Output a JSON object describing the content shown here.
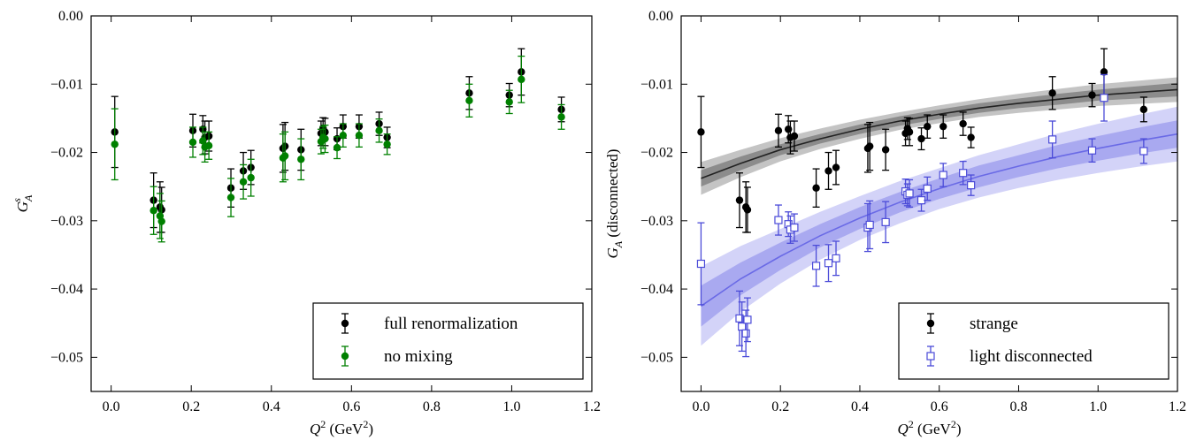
{
  "chart_data": [
    {
      "type": "scatter",
      "xlabel": "Q² (GeV²)",
      "ylabel": "G_A^s",
      "xlim": [
        -0.05,
        1.2
      ],
      "ylim": [
        -0.055,
        0.0
      ],
      "xticks": [
        "0.0",
        "0.2",
        "0.4",
        "0.6",
        "0.8",
        "1.0",
        "1.2"
      ],
      "yticks": [
        "0.00",
        "−0.01",
        "−0.02",
        "−0.03",
        "−0.04",
        "−0.05"
      ],
      "xtick_values": [
        0.0,
        0.2,
        0.4,
        0.6,
        0.8,
        1.0,
        1.2
      ],
      "ytick_values": [
        0.0,
        -0.01,
        -0.02,
        -0.03,
        -0.04,
        -0.05
      ],
      "legend_position": "bottom-right",
      "series": [
        {
          "name": "full renormalization",
          "color": "#000000",
          "marker": "circle-filled",
          "points": [
            {
              "x": 0.0,
              "y": -0.017,
              "err": 0.0052
            },
            {
              "x": 0.097,
              "y": -0.027,
              "err": 0.004
            },
            {
              "x": 0.113,
              "y": -0.028,
              "err": 0.0037
            },
            {
              "x": 0.117,
              "y": -0.0284,
              "err": 0.0033
            },
            {
              "x": 0.195,
              "y": -0.0168,
              "err": 0.0024
            },
            {
              "x": 0.22,
              "y": -0.0166,
              "err": 0.002
            },
            {
              "x": 0.225,
              "y": -0.0178,
              "err": 0.0024
            },
            {
              "x": 0.235,
              "y": -0.0176,
              "err": 0.0022
            },
            {
              "x": 0.29,
              "y": -0.0252,
              "err": 0.0028
            },
            {
              "x": 0.321,
              "y": -0.0227,
              "err": 0.0027
            },
            {
              "x": 0.34,
              "y": -0.0222,
              "err": 0.0025
            },
            {
              "x": 0.42,
              "y": -0.0194,
              "err": 0.0035
            },
            {
              "x": 0.425,
              "y": -0.0191,
              "err": 0.0035
            },
            {
              "x": 0.465,
              "y": -0.0196,
              "err": 0.003
            },
            {
              "x": 0.515,
              "y": -0.0172,
              "err": 0.0018
            },
            {
              "x": 0.52,
              "y": -0.0165,
              "err": 0.0016
            },
            {
              "x": 0.525,
              "y": -0.017,
              "err": 0.002
            },
            {
              "x": 0.555,
              "y": -0.018,
              "err": 0.0016
            },
            {
              "x": 0.57,
              "y": -0.0162,
              "err": 0.0017
            },
            {
              "x": 0.61,
              "y": -0.0162,
              "err": 0.0017
            },
            {
              "x": 0.66,
              "y": -0.0158,
              "err": 0.0017
            },
            {
              "x": 0.68,
              "y": -0.0178,
              "err": 0.0015
            },
            {
              "x": 0.885,
              "y": -0.0113,
              "err": 0.0024
            },
            {
              "x": 0.985,
              "y": -0.0116,
              "err": 0.0017
            },
            {
              "x": 1.015,
              "y": -0.0082,
              "err": 0.0034
            },
            {
              "x": 1.115,
              "y": -0.0137,
              "err": 0.0018
            }
          ]
        },
        {
          "name": "no mixing",
          "color": "#008000",
          "marker": "circle-filled",
          "points": [
            {
              "x": 0.0,
              "y": -0.0188,
              "err": 0.0052
            },
            {
              "x": 0.097,
              "y": -0.0285,
              "err": 0.0035
            },
            {
              "x": 0.113,
              "y": -0.0293,
              "err": 0.0033
            },
            {
              "x": 0.117,
              "y": -0.0301,
              "err": 0.003
            },
            {
              "x": 0.195,
              "y": -0.0185,
              "err": 0.0022
            },
            {
              "x": 0.22,
              "y": -0.0183,
              "err": 0.002
            },
            {
              "x": 0.225,
              "y": -0.0192,
              "err": 0.0022
            },
            {
              "x": 0.235,
              "y": -0.019,
              "err": 0.002
            },
            {
              "x": 0.29,
              "y": -0.0266,
              "err": 0.0028
            },
            {
              "x": 0.321,
              "y": -0.0243,
              "err": 0.0025
            },
            {
              "x": 0.34,
              "y": -0.0237,
              "err": 0.0027
            },
            {
              "x": 0.42,
              "y": -0.0208,
              "err": 0.0035
            },
            {
              "x": 0.425,
              "y": -0.0205,
              "err": 0.0035
            },
            {
              "x": 0.465,
              "y": -0.021,
              "err": 0.003
            },
            {
              "x": 0.515,
              "y": -0.0184,
              "err": 0.0018
            },
            {
              "x": 0.52,
              "y": -0.0178,
              "err": 0.0016
            },
            {
              "x": 0.525,
              "y": -0.018,
              "err": 0.002
            },
            {
              "x": 0.555,
              "y": -0.0193,
              "err": 0.0016
            },
            {
              "x": 0.57,
              "y": -0.0175,
              "err": 0.0017
            },
            {
              "x": 0.61,
              "y": -0.0175,
              "err": 0.0017
            },
            {
              "x": 0.66,
              "y": -0.0168,
              "err": 0.0017
            },
            {
              "x": 0.68,
              "y": -0.0188,
              "err": 0.0015
            },
            {
              "x": 0.885,
              "y": -0.0124,
              "err": 0.0024
            },
            {
              "x": 0.985,
              "y": -0.0126,
              "err": 0.0017
            },
            {
              "x": 1.015,
              "y": -0.0093,
              "err": 0.0034
            },
            {
              "x": 1.115,
              "y": -0.0148,
              "err": 0.0018
            }
          ]
        }
      ]
    },
    {
      "type": "scatter",
      "xlabel": "Q² (GeV²)",
      "ylabel": "G_A (disconnected)",
      "xlim": [
        -0.05,
        1.2
      ],
      "ylim": [
        -0.055,
        0.0
      ],
      "xticks": [
        "0.0",
        "0.2",
        "0.4",
        "0.6",
        "0.8",
        "1.0",
        "1.2"
      ],
      "yticks": [
        "0.00",
        "−0.01",
        "−0.02",
        "−0.03",
        "−0.04",
        "−0.05"
      ],
      "xtick_values": [
        0.0,
        0.2,
        0.4,
        0.6,
        0.8,
        1.0,
        1.2
      ],
      "ytick_values": [
        0.0,
        -0.01,
        -0.02,
        -0.03,
        -0.04,
        -0.05
      ],
      "legend_position": "bottom-right",
      "series": [
        {
          "name": "strange",
          "color": "#000000",
          "marker": "circle-filled",
          "points": [
            {
              "x": 0.0,
              "y": -0.017,
              "err": 0.0052
            },
            {
              "x": 0.097,
              "y": -0.027,
              "err": 0.004
            },
            {
              "x": 0.113,
              "y": -0.028,
              "err": 0.0037
            },
            {
              "x": 0.117,
              "y": -0.0284,
              "err": 0.0033
            },
            {
              "x": 0.195,
              "y": -0.0168,
              "err": 0.0024
            },
            {
              "x": 0.22,
              "y": -0.0166,
              "err": 0.002
            },
            {
              "x": 0.225,
              "y": -0.0178,
              "err": 0.0024
            },
            {
              "x": 0.235,
              "y": -0.0176,
              "err": 0.0022
            },
            {
              "x": 0.29,
              "y": -0.0252,
              "err": 0.0028
            },
            {
              "x": 0.321,
              "y": -0.0227,
              "err": 0.0027
            },
            {
              "x": 0.34,
              "y": -0.0222,
              "err": 0.0025
            },
            {
              "x": 0.42,
              "y": -0.0194,
              "err": 0.0035
            },
            {
              "x": 0.425,
              "y": -0.0191,
              "err": 0.0035
            },
            {
              "x": 0.465,
              "y": -0.0196,
              "err": 0.003
            },
            {
              "x": 0.515,
              "y": -0.0172,
              "err": 0.0018
            },
            {
              "x": 0.52,
              "y": -0.0165,
              "err": 0.0016
            },
            {
              "x": 0.525,
              "y": -0.017,
              "err": 0.002
            },
            {
              "x": 0.555,
              "y": -0.018,
              "err": 0.0016
            },
            {
              "x": 0.57,
              "y": -0.0162,
              "err": 0.0017
            },
            {
              "x": 0.61,
              "y": -0.0162,
              "err": 0.0017
            },
            {
              "x": 0.66,
              "y": -0.0158,
              "err": 0.0017
            },
            {
              "x": 0.68,
              "y": -0.0178,
              "err": 0.0015
            },
            {
              "x": 0.885,
              "y": -0.0113,
              "err": 0.0024
            },
            {
              "x": 0.985,
              "y": -0.0116,
              "err": 0.0017
            },
            {
              "x": 1.015,
              "y": -0.0082,
              "err": 0.0034
            },
            {
              "x": 1.115,
              "y": -0.0137,
              "err": 0.0018
            }
          ],
          "fit": {
            "color": "#222222",
            "inner_band_color": "#8c8c8c",
            "outer_band_color": "#c4c4c4",
            "points": [
              {
                "x": 0.0,
                "y": -0.0238,
                "inner": 0.0012,
                "outer": 0.0024
              },
              {
                "x": 0.1,
                "y": -0.0216,
                "inner": 0.001,
                "outer": 0.002
              },
              {
                "x": 0.2,
                "y": -0.0196,
                "inner": 0.0008,
                "outer": 0.0017
              },
              {
                "x": 0.3,
                "y": -0.018,
                "inner": 0.0007,
                "outer": 0.0015
              },
              {
                "x": 0.4,
                "y": -0.0166,
                "inner": 0.0007,
                "outer": 0.0014
              },
              {
                "x": 0.5,
                "y": -0.0154,
                "inner": 0.0007,
                "outer": 0.0013
              },
              {
                "x": 0.6,
                "y": -0.0144,
                "inner": 0.0007,
                "outer": 0.0013
              },
              {
                "x": 0.7,
                "y": -0.0135,
                "inner": 0.0007,
                "outer": 0.0013
              },
              {
                "x": 0.8,
                "y": -0.0128,
                "inner": 0.0007,
                "outer": 0.0014
              },
              {
                "x": 0.9,
                "y": -0.0122,
                "inner": 0.0008,
                "outer": 0.0015
              },
              {
                "x": 1.0,
                "y": -0.0116,
                "inner": 0.0008,
                "outer": 0.0016
              },
              {
                "x": 1.1,
                "y": -0.0112,
                "inner": 0.0009,
                "outer": 0.0017
              },
              {
                "x": 1.2,
                "y": -0.0108,
                "inner": 0.001,
                "outer": 0.0018
              }
            ]
          }
        },
        {
          "name": "light disconnected",
          "color": "#4b4bd8",
          "marker": "square-open",
          "points": [
            {
              "x": 0.0,
              "y": -0.0363,
              "err": 0.006
            },
            {
              "x": 0.097,
              "y": -0.0443,
              "err": 0.004
            },
            {
              "x": 0.103,
              "y": -0.0455,
              "err": 0.0036
            },
            {
              "x": 0.113,
              "y": -0.0465,
              "err": 0.0034
            },
            {
              "x": 0.117,
              "y": -0.0445,
              "err": 0.0032
            },
            {
              "x": 0.195,
              "y": -0.0299,
              "err": 0.0022
            },
            {
              "x": 0.22,
              "y": -0.0305,
              "err": 0.0018
            },
            {
              "x": 0.225,
              "y": -0.0313,
              "err": 0.002
            },
            {
              "x": 0.235,
              "y": -0.031,
              "err": 0.002
            },
            {
              "x": 0.29,
              "y": -0.0366,
              "err": 0.003
            },
            {
              "x": 0.321,
              "y": -0.0362,
              "err": 0.0027
            },
            {
              "x": 0.34,
              "y": -0.0355,
              "err": 0.0025
            },
            {
              "x": 0.42,
              "y": -0.031,
              "err": 0.0035
            },
            {
              "x": 0.425,
              "y": -0.0306,
              "err": 0.0035
            },
            {
              "x": 0.465,
              "y": -0.0302,
              "err": 0.003
            },
            {
              "x": 0.515,
              "y": -0.0257,
              "err": 0.0018
            },
            {
              "x": 0.52,
              "y": -0.0262,
              "err": 0.0016
            },
            {
              "x": 0.525,
              "y": -0.026,
              "err": 0.002
            },
            {
              "x": 0.555,
              "y": -0.027,
              "err": 0.0016
            },
            {
              "x": 0.57,
              "y": -0.0253,
              "err": 0.0017
            },
            {
              "x": 0.61,
              "y": -0.0233,
              "err": 0.0017
            },
            {
              "x": 0.66,
              "y": -0.023,
              "err": 0.0017
            },
            {
              "x": 0.68,
              "y": -0.0248,
              "err": 0.0015
            },
            {
              "x": 0.885,
              "y": -0.0181,
              "err": 0.0027
            },
            {
              "x": 0.985,
              "y": -0.0197,
              "err": 0.0017
            },
            {
              "x": 1.015,
              "y": -0.012,
              "err": 0.0034
            },
            {
              "x": 1.115,
              "y": -0.0198,
              "err": 0.0018
            }
          ],
          "fit": {
            "color": "#6a6ae6",
            "inner_band_color": "#a9a9f0",
            "outer_band_color": "#d3d3f8",
            "points": [
              {
                "x": 0.0,
                "y": -0.0425,
                "inner": 0.003,
                "outer": 0.0058
              },
              {
                "x": 0.1,
                "y": -0.0385,
                "inner": 0.0024,
                "outer": 0.0048
              },
              {
                "x": 0.2,
                "y": -0.0352,
                "inner": 0.002,
                "outer": 0.004
              },
              {
                "x": 0.3,
                "y": -0.0322,
                "inner": 0.0017,
                "outer": 0.0035
              },
              {
                "x": 0.4,
                "y": -0.0296,
                "inner": 0.0016,
                "outer": 0.0032
              },
              {
                "x": 0.5,
                "y": -0.0273,
                "inner": 0.0015,
                "outer": 0.0031
              },
              {
                "x": 0.6,
                "y": -0.0253,
                "inner": 0.0015,
                "outer": 0.003
              },
              {
                "x": 0.7,
                "y": -0.0235,
                "inner": 0.0016,
                "outer": 0.0031
              },
              {
                "x": 0.8,
                "y": -0.022,
                "inner": 0.0016,
                "outer": 0.0032
              },
              {
                "x": 0.9,
                "y": -0.0206,
                "inner": 0.0017,
                "outer": 0.0034
              },
              {
                "x": 1.0,
                "y": -0.0194,
                "inner": 0.0018,
                "outer": 0.0036
              },
              {
                "x": 1.1,
                "y": -0.0183,
                "inner": 0.0019,
                "outer": 0.0038
              },
              {
                "x": 1.2,
                "y": -0.0173,
                "inner": 0.002,
                "outer": 0.004
              }
            ]
          }
        }
      ]
    }
  ]
}
